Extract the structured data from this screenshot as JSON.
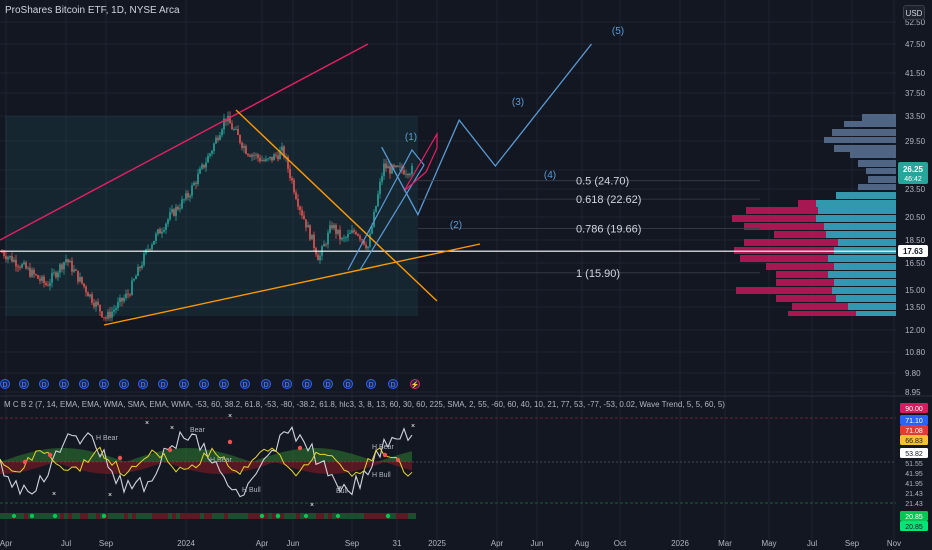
{
  "header": {
    "title": "ProShares Bitcoin ETF, 1D, NYSE Arca",
    "currency": "USD"
  },
  "indicator": {
    "title": "M C B 2 (7, 14, EMA, EMA, WMA, SMA, EMA, WMA, -53, 60, 38.2, 61.8, -53, -80, -38.2, 61.8, hlc3, 3, 8, 13, 60, 30, 60, 225, SMA, 2, 55, -60, 60, 40, 10, 21, 77, 53, -77, -53, 0.02, Wave Trend, 5, 5, 60, 5)",
    "labels": [
      "H Bear",
      "Bear",
      "H Bear",
      "H Bull",
      "H Bear",
      "H Bull",
      "Bull"
    ],
    "price_tags": [
      {
        "value": "90.00",
        "color": "#d81b60"
      },
      {
        "value": "71.10",
        "color": "#2962ff"
      },
      {
        "value": "71.08",
        "color": "#e53935"
      },
      {
        "value": "66.83",
        "color": "#fbc02d"
      },
      {
        "value": "53.82",
        "color": "#ffffff"
      },
      {
        "value": "51.55",
        "color": "#131722"
      },
      {
        "value": "41.95",
        "color": "#131722"
      },
      {
        "value": "41.95",
        "color": "#131722"
      },
      {
        "value": "21.43",
        "color": "#131722"
      },
      {
        "value": "21.43",
        "color": "#131722"
      },
      {
        "value": "20.85",
        "color": "#00c853"
      },
      {
        "value": "20.85",
        "color": "#00e676"
      }
    ]
  },
  "price_tags": [
    {
      "value": "26.25",
      "sub": "46:42",
      "color": "#26a69a"
    },
    {
      "value": "17.63",
      "color": "#ffffff"
    }
  ],
  "fib_levels": [
    {
      "label": "0.5 (24.70)",
      "value": 24.7
    },
    {
      "label": "0.618 (22.62)",
      "value": 22.62
    },
    {
      "label": "0.786 (19.66)",
      "value": 19.66
    },
    {
      "label": "1 (15.90)",
      "value": 15.9
    }
  ],
  "wave_labels": [
    "(1)",
    "(2)",
    "(3)",
    "(4)",
    "(5)"
  ],
  "event_marker": "D",
  "colors": {
    "background": "#131722",
    "up": "#26a69a",
    "down": "#ef5350",
    "wave_path": "#5b9bd5",
    "channel_upper": "#e91e63",
    "trendline": "#ff9800",
    "volume_profile_a": "#c2185b",
    "volume_profile_b": "#26a6b8"
  },
  "chart_data": {
    "type": "line",
    "title": "ProShares Bitcoin ETF, 1D, NYSE Arca",
    "x_labels": [
      "Apr",
      "Jul",
      "Sep",
      "2024",
      "Apr",
      "Jun",
      "Sep",
      "31",
      "2025",
      "Apr",
      "Jun",
      "Aug",
      "Oct",
      "2026",
      "Mar",
      "May",
      "Jul",
      "Sep",
      "Nov"
    ],
    "y_labels": [
      "52.50",
      "47.50",
      "41.50",
      "37.50",
      "33.50",
      "29.50",
      "26.25",
      "23.50",
      "20.50",
      "18.50",
      "17.63",
      "16.50",
      "15.00",
      "13.50",
      "12.00",
      "10.80",
      "9.80",
      "8.95"
    ],
    "ylim": [
      8.95,
      52.5
    ],
    "log_scale": true,
    "grid": true,
    "series": [
      {
        "values": [
          [
            "2023-04-01",
            17.6
          ],
          [
            "2023-05-01",
            16.5
          ],
          [
            "2023-06-10",
            15.0
          ],
          [
            "2023-07-10",
            17.0
          ],
          [
            "2023-08-20",
            14.0
          ],
          [
            "2023-09-10",
            12.8
          ],
          [
            "2023-10-15",
            14.4
          ],
          [
            "2023-11-15",
            18.0
          ],
          [
            "2023-12-20",
            21.0
          ],
          [
            "2024-01-15",
            23.0
          ],
          [
            "2024-02-20",
            28.5
          ],
          [
            "2024-03-13",
            33.5
          ],
          [
            "2024-04-15",
            28.5
          ],
          [
            "2024-05-15",
            27.0
          ],
          [
            "2024-06-10",
            28.5
          ],
          [
            "2024-07-05",
            22.0
          ],
          [
            "2024-08-05",
            17.0
          ],
          [
            "2024-08-25",
            20.0
          ],
          [
            "2024-09-10",
            18.5
          ],
          [
            "2024-10-01",
            19.5
          ],
          [
            "2024-10-20",
            18.0
          ],
          [
            "2024-11-13",
            26.5
          ],
          [
            "2024-11-25",
            26.0
          ]
        ]
      }
    ],
    "wave_projection": [
      [
        "2024-11-10",
        29.0
      ],
      [
        "2025-01-05",
        21.0
      ],
      [
        "2025-03-10",
        33.0
      ],
      [
        "2025-05-05",
        26.5
      ],
      [
        "2025-10-01",
        47.5
      ]
    ],
    "horizontal_lines": [
      17.63
    ],
    "fib_levels": [
      24.7,
      22.62,
      19.66,
      15.9
    ]
  }
}
